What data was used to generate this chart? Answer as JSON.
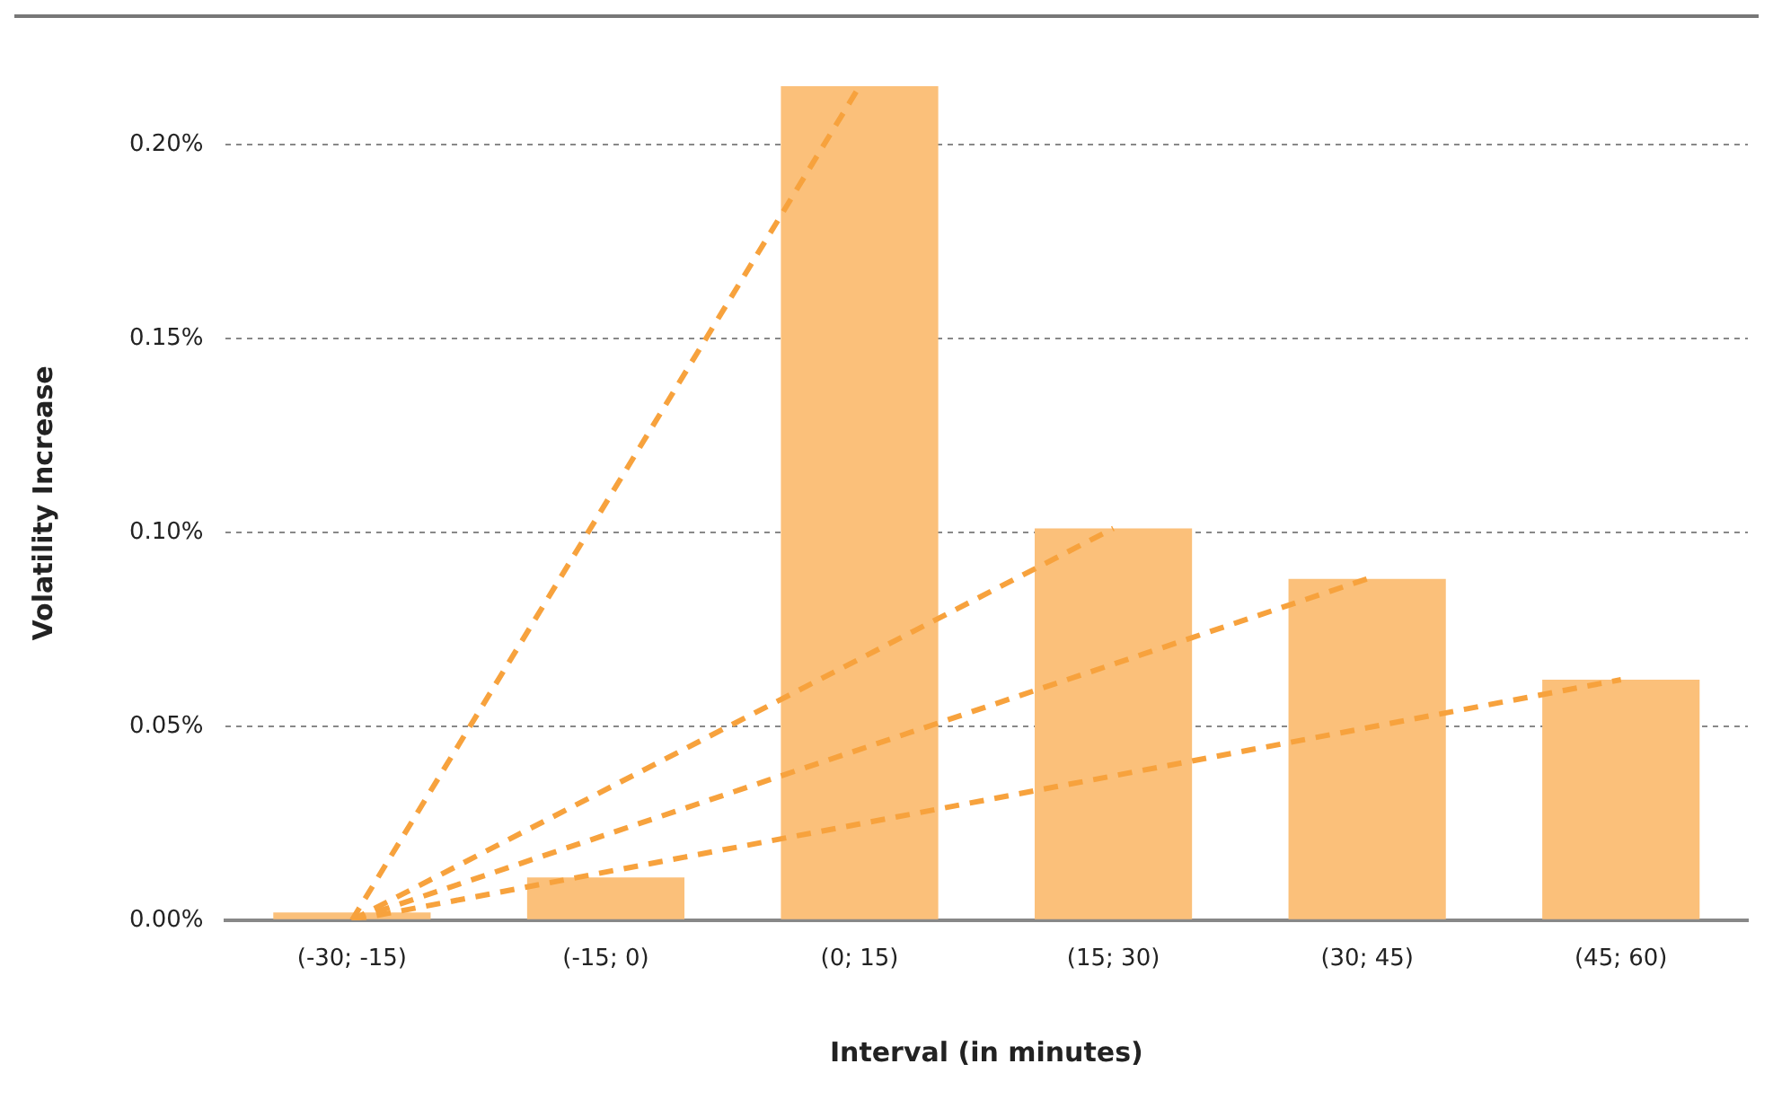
{
  "chart_data": {
    "type": "bar",
    "xlabel": "Interval (in minutes)",
    "ylabel": "Volatility Increase",
    "categories": [
      "(-30; -15)",
      "(-15; 0)",
      "(0; 15)",
      "(15; 30)",
      "(30; 45)",
      "(45; 60)"
    ],
    "series": [
      {
        "color": "#fbc07a",
        "values": [
          0.002,
          0.011,
          0.215,
          0.101,
          0.088,
          0.062
        ]
      },
      {
        "type": "line",
        "color": "#f7a23d",
        "line_style": "dashed",
        "x": [
          "(-30; -15)",
          "(0; 15)"
        ],
        "values": [
          0,
          0.215
        ]
      },
      {
        "type": "line",
        "color": "#f7a23d",
        "line_style": "dashed",
        "x": [
          "(-30; -15)",
          "(15; 30)"
        ],
        "values": [
          0,
          0.101
        ]
      },
      {
        "type": "line",
        "color": "#f7a23d",
        "line_style": "dashed",
        "x": [
          "(-30; -15)",
          "(30; 45)"
        ],
        "values": [
          0,
          0.088
        ]
      },
      {
        "type": "line",
        "color": "#f7a23d",
        "line_style": "dashed",
        "x": [
          "(-30; -15)",
          "(45; 60)"
        ],
        "values": [
          0,
          0.062
        ]
      }
    ],
    "marker": "none",
    "grid": "y",
    "ylim": [
      0,
      0.215
    ],
    "yticks": [
      {
        "value": 0,
        "label": "0.00%"
      },
      {
        "value": 0.05,
        "label": "0.05%"
      },
      {
        "value": 0.1,
        "label": "0.10%"
      },
      {
        "value": 0.15,
        "label": "0.15%"
      },
      {
        "value": 0.2,
        "label": "0.20%"
      }
    ]
  }
}
